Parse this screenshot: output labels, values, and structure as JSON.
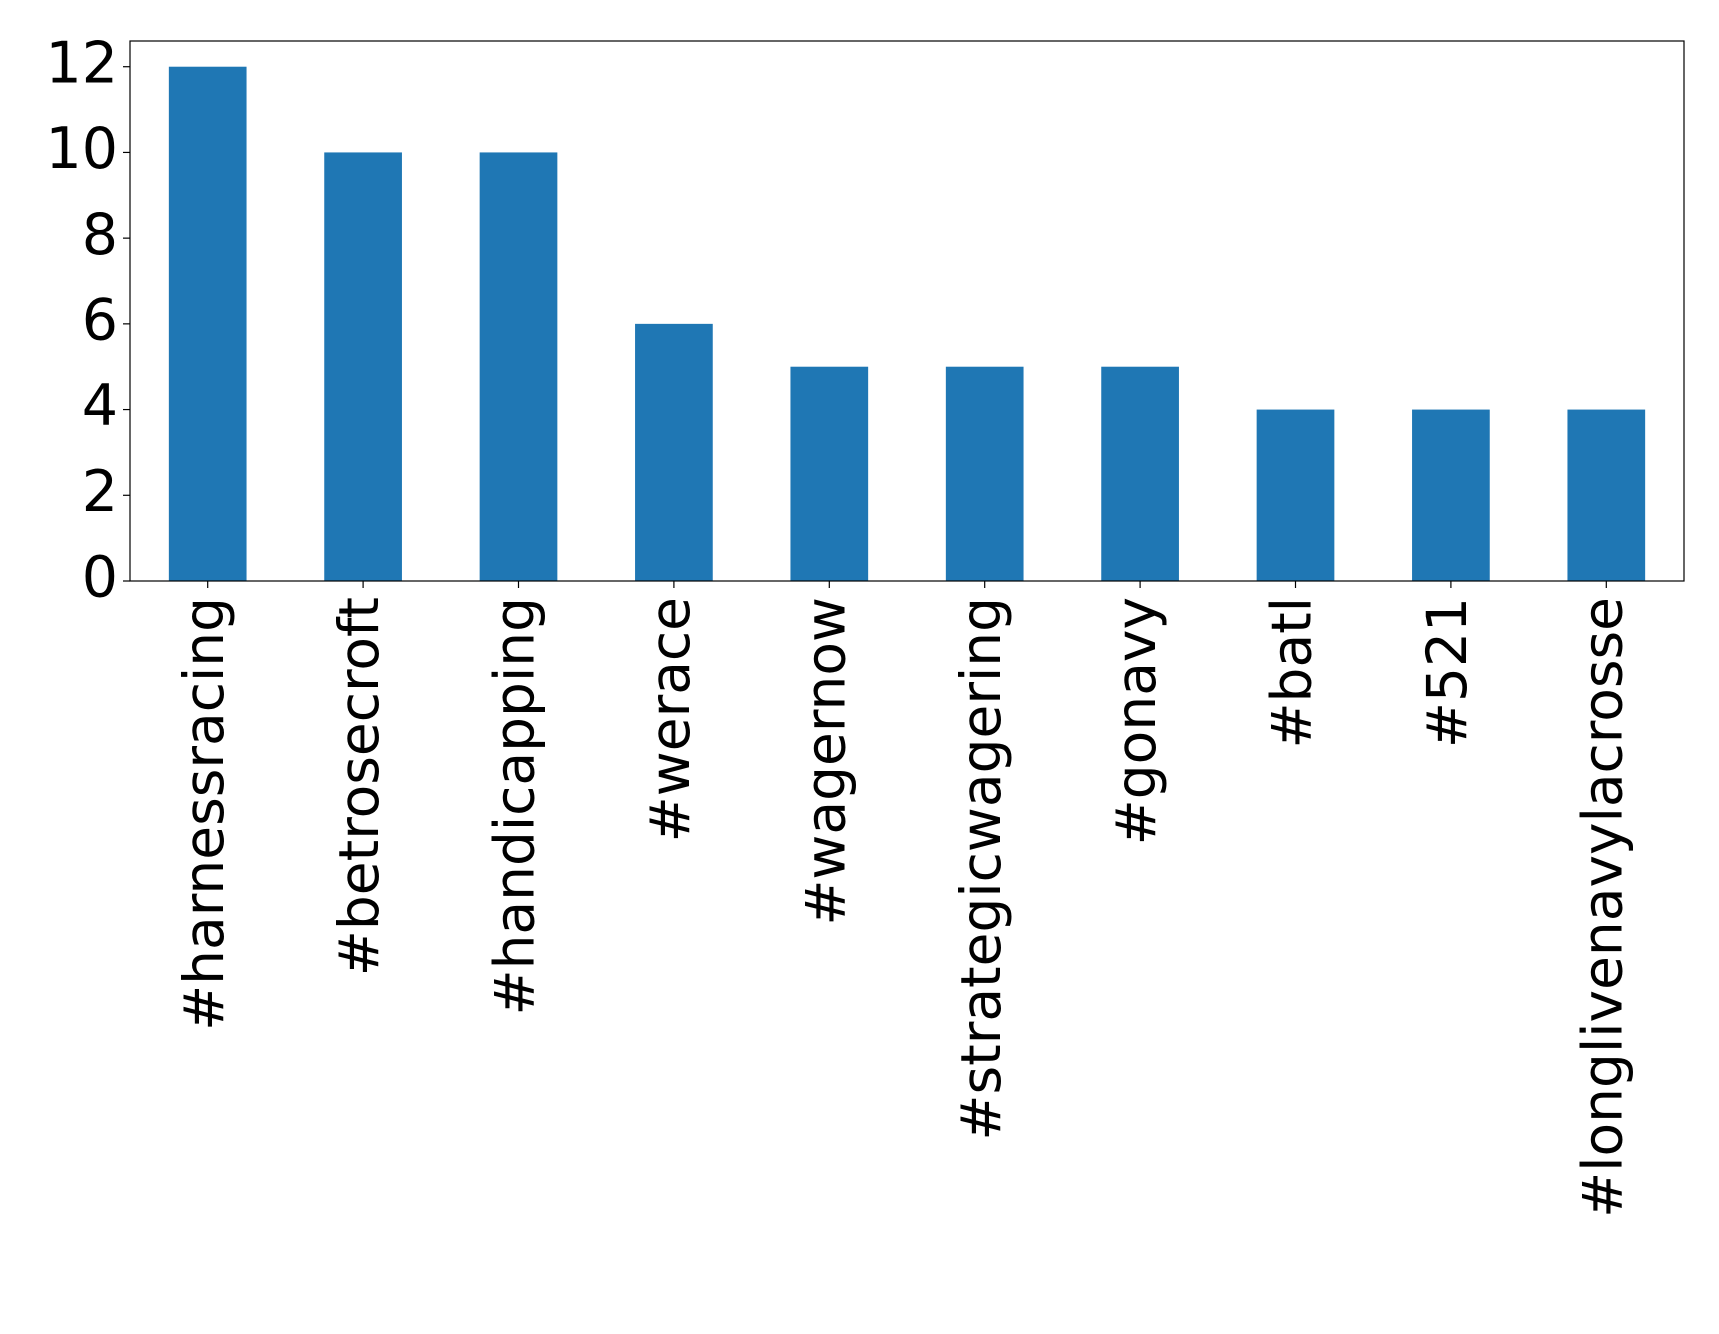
{
  "chart_data": {
    "type": "bar",
    "categories": [
      "#harnessracing",
      "#betrosecroft",
      "#handicapping",
      "#werace",
      "#wagernow",
      "#strategicwagering",
      "#gonavy",
      "#batl",
      "#521",
      "#longlivenavylacrosse"
    ],
    "values": [
      12,
      10,
      10,
      6,
      5,
      5,
      5,
      4,
      4,
      4
    ],
    "color": "#1f77b4",
    "ylim": [
      0,
      12.6
    ],
    "yticks": [
      0,
      2,
      4,
      6,
      8,
      10,
      12
    ],
    "grid": false
  }
}
